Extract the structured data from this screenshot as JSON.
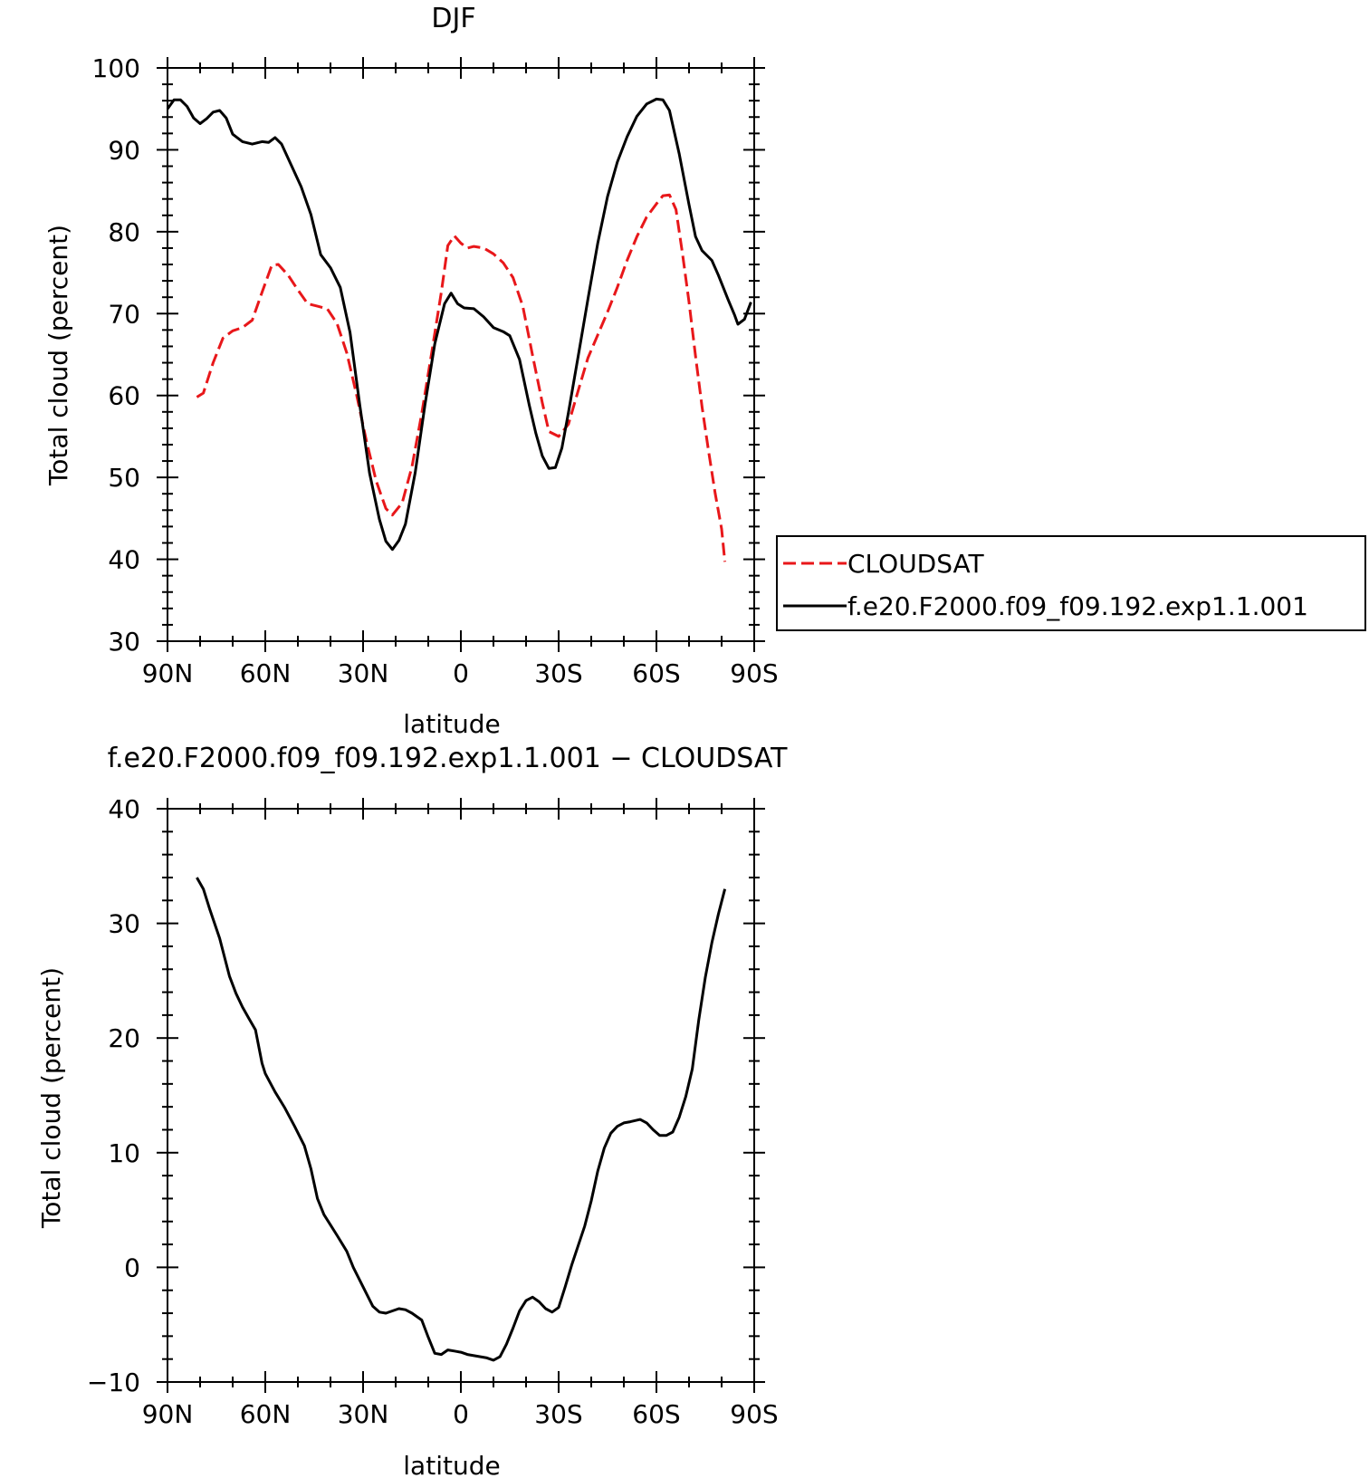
{
  "chart_data": [
    {
      "type": "line",
      "title": "DJF",
      "xlabel": "latitude",
      "ylabel": "Total cloud (percent)",
      "xlim": [
        90,
        -90
      ],
      "ylim": [
        30,
        100
      ],
      "x_ticks": [
        {
          "value": 90,
          "label": "90N"
        },
        {
          "value": 60,
          "label": "60N"
        },
        {
          "value": 30,
          "label": "30N"
        },
        {
          "value": 0,
          "label": "0"
        },
        {
          "value": -30,
          "label": "30S"
        },
        {
          "value": -60,
          "label": "60S"
        },
        {
          "value": -90,
          "label": "90S"
        }
      ],
      "y_ticks": [
        30,
        40,
        50,
        60,
        70,
        80,
        90,
        100
      ],
      "grid": false,
      "legend_position": "right",
      "series": [
        {
          "name": "CLOUDSAT",
          "color": "#e8171a",
          "dash": "dashed",
          "points": [
            [
              81,
              59.8
            ],
            [
              79,
              60.3
            ],
            [
              76,
              64
            ],
            [
              73,
              67
            ],
            [
              70,
              67.9
            ],
            [
              67,
              68.3
            ],
            [
              64,
              69.2
            ],
            [
              61,
              72.6
            ],
            [
              58,
              75.9
            ],
            [
              56,
              76
            ],
            [
              53,
              74.7
            ],
            [
              50,
              72.9
            ],
            [
              47,
              71.2
            ],
            [
              44,
              70.9
            ],
            [
              41,
              70.6
            ],
            [
              38,
              68.8
            ],
            [
              35,
              65.2
            ],
            [
              32,
              60.1
            ],
            [
              29,
              54.5
            ],
            [
              26,
              49.6
            ],
            [
              23,
              46.2
            ],
            [
              21,
              45.4
            ],
            [
              18,
              46.9
            ],
            [
              15,
              51.3
            ],
            [
              12,
              57.8
            ],
            [
              9,
              65.1
            ],
            [
              6,
              72.6
            ],
            [
              4,
              78.3
            ],
            [
              2,
              79.5
            ],
            [
              0,
              78.6
            ],
            [
              -2,
              78
            ],
            [
              -4,
              78.2
            ],
            [
              -7,
              78
            ],
            [
              -10,
              77.3
            ],
            [
              -13,
              76.2
            ],
            [
              -16,
              74.4
            ],
            [
              -19,
              70.9
            ],
            [
              -22,
              64.9
            ],
            [
              -25,
              59.1
            ],
            [
              -27,
              55.6
            ],
            [
              -30,
              55
            ],
            [
              -33,
              56.5
            ],
            [
              -36,
              60.6
            ],
            [
              -39,
              64.6
            ],
            [
              -42,
              67.4
            ],
            [
              -45,
              70.2
            ],
            [
              -48,
              73.2
            ],
            [
              -51,
              76.5
            ],
            [
              -54,
              79.4
            ],
            [
              -57,
              81.8
            ],
            [
              -60,
              83.4
            ],
            [
              -62,
              84.4
            ],
            [
              -64,
              84.5
            ],
            [
              -66,
              82.7
            ],
            [
              -68,
              77.3
            ],
            [
              -70,
              71.4
            ],
            [
              -72,
              64.8
            ],
            [
              -74,
              58.6
            ],
            [
              -76,
              53.2
            ],
            [
              -78,
              48.1
            ],
            [
              -80,
              43.7
            ],
            [
              -81,
              39.7
            ]
          ]
        },
        {
          "name": "f.e20.F2000.f09_f09.192.exp1.1.001",
          "color": "#000000",
          "dash": "solid",
          "points": [
            [
              90,
              95
            ],
            [
              88,
              96.1
            ],
            [
              86,
              96.1
            ],
            [
              84,
              95.3
            ],
            [
              82,
              93.9
            ],
            [
              80,
              93.2
            ],
            [
              78,
              93.8
            ],
            [
              76,
              94.6
            ],
            [
              74,
              94.8
            ],
            [
              72,
              93.9
            ],
            [
              70,
              91.9
            ],
            [
              67,
              91
            ],
            [
              64,
              90.7
            ],
            [
              61,
              91
            ],
            [
              59,
              90.9
            ],
            [
              57,
              91.5
            ],
            [
              55,
              90.7
            ],
            [
              52,
              88.1
            ],
            [
              49,
              85.5
            ],
            [
              46,
              82.1
            ],
            [
              43,
              77.2
            ],
            [
              40,
              75.6
            ],
            [
              37,
              73.2
            ],
            [
              34,
              67.7
            ],
            [
              31,
              58.8
            ],
            [
              28,
              50.5
            ],
            [
              25,
              44.9
            ],
            [
              23,
              42.2
            ],
            [
              21,
              41.2
            ],
            [
              19,
              42.3
            ],
            [
              17,
              44.3
            ],
            [
              14,
              50.6
            ],
            [
              11,
              58.9
            ],
            [
              8,
              66.3
            ],
            [
              5,
              71.2
            ],
            [
              3,
              72.5
            ],
            [
              1,
              71.2
            ],
            [
              -1,
              70.7
            ],
            [
              -4,
              70.6
            ],
            [
              -7,
              69.6
            ],
            [
              -10,
              68.3
            ],
            [
              -13,
              67.8
            ],
            [
              -15,
              67.3
            ],
            [
              -18,
              64.4
            ],
            [
              -21,
              58.8
            ],
            [
              -23,
              55.4
            ],
            [
              -25,
              52.6
            ],
            [
              -27,
              51.1
            ],
            [
              -29,
              51.2
            ],
            [
              -31,
              53.6
            ],
            [
              -33,
              57.9
            ],
            [
              -36,
              64.8
            ],
            [
              -39,
              71.8
            ],
            [
              -42,
              78.6
            ],
            [
              -45,
              84.3
            ],
            [
              -48,
              88.5
            ],
            [
              -51,
              91.6
            ],
            [
              -54,
              94.1
            ],
            [
              -57,
              95.6
            ],
            [
              -60,
              96.2
            ],
            [
              -62,
              96.1
            ],
            [
              -64,
              94.8
            ],
            [
              -67,
              89.5
            ],
            [
              -70,
              83.3
            ],
            [
              -72,
              79.4
            ],
            [
              -74,
              77.7
            ],
            [
              -77,
              76.5
            ],
            [
              -79,
              74.7
            ],
            [
              -82,
              71.7
            ],
            [
              -84,
              69.8
            ],
            [
              -85,
              68.7
            ],
            [
              -87,
              69.3
            ],
            [
              -89,
              71.4
            ]
          ]
        }
      ]
    },
    {
      "type": "line",
      "title": "f.e20.F2000.f09_f09.192.exp1.1.001 − CLOUDSAT",
      "xlabel": "latitude",
      "ylabel": "Total cloud (percent)",
      "xlim": [
        90,
        -90
      ],
      "ylim": [
        -10,
        40
      ],
      "x_ticks": [
        {
          "value": 90,
          "label": "90N"
        },
        {
          "value": 60,
          "label": "60N"
        },
        {
          "value": 30,
          "label": "30N"
        },
        {
          "value": 0,
          "label": "0"
        },
        {
          "value": -30,
          "label": "30S"
        },
        {
          "value": -60,
          "label": "60S"
        },
        {
          "value": -90,
          "label": "90S"
        }
      ],
      "y_ticks": [
        {
          "value": -10,
          "label": "−10"
        },
        {
          "value": 0,
          "label": "0"
        },
        {
          "value": 10,
          "label": "10"
        },
        {
          "value": 20,
          "label": "20"
        },
        {
          "value": 30,
          "label": "30"
        },
        {
          "value": 40,
          "label": "40"
        }
      ],
      "grid": false,
      "series": [
        {
          "color": "#000000",
          "dash": "solid",
          "points": [
            [
              81,
              34
            ],
            [
              79,
              33
            ],
            [
              77,
              31.2
            ],
            [
              74,
              28.7
            ],
            [
              71,
              25.4
            ],
            [
              69,
              23.9
            ],
            [
              67,
              22.7
            ],
            [
              65,
              21.7
            ],
            [
              63,
              20.7
            ],
            [
              61,
              17.8
            ],
            [
              60,
              16.9
            ],
            [
              57,
              15.3
            ],
            [
              54,
              13.9
            ],
            [
              51,
              12.3
            ],
            [
              48,
              10.6
            ],
            [
              46,
              8.6
            ],
            [
              44,
              6
            ],
            [
              42,
              4.6
            ],
            [
              40,
              3.7
            ],
            [
              38,
              2.8
            ],
            [
              35,
              1.4
            ],
            [
              33,
              0
            ],
            [
              30,
              -1.7
            ],
            [
              27,
              -3.4
            ],
            [
              25,
              -3.9
            ],
            [
              23,
              -4
            ],
            [
              21,
              -3.8
            ],
            [
              19,
              -3.6
            ],
            [
              17,
              -3.7
            ],
            [
              15,
              -4
            ],
            [
              12,
              -4.6
            ],
            [
              10,
              -6.1
            ],
            [
              8,
              -7.5
            ],
            [
              6,
              -7.6
            ],
            [
              4,
              -7.2
            ],
            [
              2,
              -7.3
            ],
            [
              0,
              -7.4
            ],
            [
              -2,
              -7.6
            ],
            [
              -4,
              -7.7
            ],
            [
              -6,
              -7.8
            ],
            [
              -8,
              -7.9
            ],
            [
              -10,
              -8.1
            ],
            [
              -12,
              -7.8
            ],
            [
              -14,
              -6.7
            ],
            [
              -16,
              -5.3
            ],
            [
              -18,
              -3.8
            ],
            [
              -20,
              -2.9
            ],
            [
              -22,
              -2.6
            ],
            [
              -24,
              -3
            ],
            [
              -26,
              -3.6
            ],
            [
              -28,
              -3.9
            ],
            [
              -30,
              -3.5
            ],
            [
              -32,
              -1.7
            ],
            [
              -34,
              0.2
            ],
            [
              -36,
              1.9
            ],
            [
              -38,
              3.6
            ],
            [
              -40,
              5.8
            ],
            [
              -42,
              8.4
            ],
            [
              -44,
              10.4
            ],
            [
              -46,
              11.7
            ],
            [
              -48,
              12.3
            ],
            [
              -50,
              12.6
            ],
            [
              -52,
              12.7
            ],
            [
              -55,
              12.9
            ],
            [
              -57,
              12.6
            ],
            [
              -59,
              12
            ],
            [
              -61,
              11.5
            ],
            [
              -63,
              11.5
            ],
            [
              -65,
              11.8
            ],
            [
              -67,
              13.1
            ],
            [
              -69,
              14.9
            ],
            [
              -71,
              17.3
            ],
            [
              -73,
              21.6
            ],
            [
              -75,
              25.3
            ],
            [
              -77,
              28.3
            ],
            [
              -79,
              30.8
            ],
            [
              -81,
              33
            ]
          ]
        }
      ]
    }
  ]
}
